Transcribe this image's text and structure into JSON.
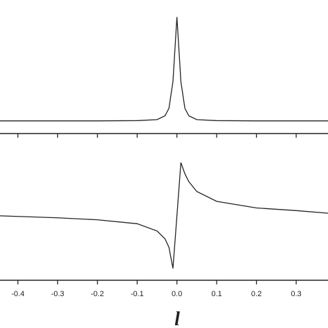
{
  "chart_data": [
    {
      "type": "line",
      "color": "#222222",
      "x": [
        -0.445,
        -0.3,
        -0.2,
        -0.1,
        -0.05,
        -0.03,
        -0.02,
        -0.01,
        0,
        0.01,
        0.02,
        0.03,
        0.05,
        0.1,
        0.2,
        0.3,
        0.38
      ],
      "values": [
        0.1,
        0.1,
        0.1,
        0.102,
        0.11,
        0.14,
        0.2,
        0.41,
        0.92,
        0.41,
        0.2,
        0.14,
        0.11,
        0.102,
        0.1,
        0.1,
        0.1
      ],
      "xlim": [
        -0.445,
        0.38
      ],
      "ylim": [
        0,
        1
      ]
    },
    {
      "type": "line",
      "color": "#222222",
      "x_label": "l",
      "x": [
        -0.445,
        -0.3,
        -0.2,
        -0.1,
        -0.05,
        -0.03,
        -0.02,
        -0.01,
        0,
        0.01,
        0.02,
        0.03,
        0.05,
        0.1,
        0.2,
        0.3,
        0.38
      ],
      "values": [
        -0.02,
        -0.05,
        -0.08,
        -0.14,
        -0.25,
        -0.37,
        -0.5,
        -0.82,
        -0.02,
        0.79,
        0.62,
        0.5,
        0.35,
        0.2,
        0.1,
        0.06,
        0.02
      ],
      "xlim": [
        -0.445,
        0.38
      ],
      "ylim": [
        -1,
        1
      ],
      "xticks": [
        -0.4,
        -0.3,
        -0.2,
        -0.1,
        {
          "value": 0,
          "label": "0.0"
        },
        0.1,
        0.2,
        0.3
      ]
    }
  ]
}
